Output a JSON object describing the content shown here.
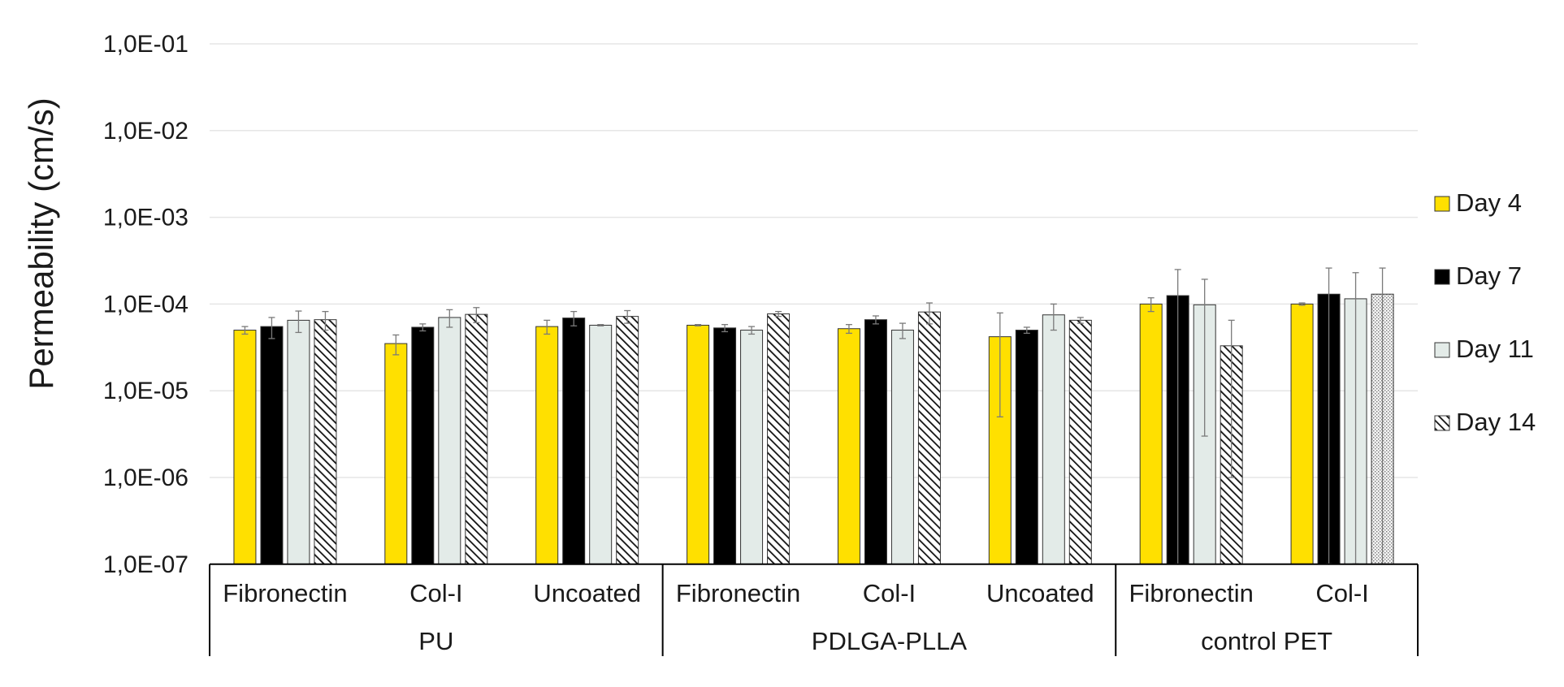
{
  "chart_data": {
    "type": "bar",
    "title": "",
    "xlabel": "",
    "ylabel": "Permeability (cm/s)",
    "yscale": "log",
    "ylim": [
      1e-07,
      0.1
    ],
    "yticks": [
      {
        "value": 0.1,
        "label": "1,0E-01"
      },
      {
        "value": 0.01,
        "label": "1,0E-02"
      },
      {
        "value": 0.001,
        "label": "1,0E-03"
      },
      {
        "value": 0.0001,
        "label": "1,0E-04"
      },
      {
        "value": 1e-05,
        "label": "1,0E-05"
      },
      {
        "value": 1e-06,
        "label": "1,0E-06"
      },
      {
        "value": 1e-07,
        "label": "1,0E-07"
      }
    ],
    "grid": true,
    "legend_position": "right",
    "groups": [
      {
        "label": "PU",
        "categories": [
          "Fibronectin",
          "Col-I",
          "Uncoated"
        ]
      },
      {
        "label": "PDLGA-PLLA",
        "categories": [
          "Fibronectin",
          "Col-I",
          "Uncoated"
        ]
      },
      {
        "label": "control PET",
        "categories": [
          "Fibronectin",
          "Col-I"
        ]
      }
    ],
    "categories": [
      "Fibronectin",
      "Col-I",
      "Uncoated",
      "Fibronectin",
      "Col-I",
      "Uncoated",
      "Fibronectin",
      "Col-I"
    ],
    "series": [
      {
        "name": "Day 4",
        "color": "#ffe000",
        "pattern": "solid",
        "values": [
          5e-05,
          3.5e-05,
          5.5e-05,
          5.7e-05,
          5.2e-05,
          4.2e-05,
          0.0001,
          0.0001
        ],
        "errors": [
          5e-06,
          9e-06,
          1e-05,
          1e-06,
          6e-06,
          3.7e-05,
          1.8e-05,
          3e-06
        ]
      },
      {
        "name": "Day 7",
        "color": "#000000",
        "pattern": "solid",
        "values": [
          5.5e-05,
          5.4e-05,
          6.9e-05,
          5.3e-05,
          6.6e-05,
          5e-05,
          0.000125,
          0.00013
        ],
        "errors": [
          1.5e-05,
          5e-06,
          1.3e-05,
          5e-06,
          7e-06,
          4e-06,
          0.000125,
          0.00013
        ]
      },
      {
        "name": "Day 11",
        "color": "#e3ebe8",
        "pattern": "solid",
        "values": [
          6.5e-05,
          7e-05,
          5.7e-05,
          5e-05,
          5e-05,
          7.5e-05,
          9.8e-05,
          0.000115
        ],
        "errors": [
          1.8e-05,
          1.6e-05,
          1e-06,
          5e-06,
          1e-05,
          2.5e-05,
          9.5e-05,
          0.000115
        ]
      },
      {
        "name": "Day 14",
        "color": "#ffffff",
        "pattern": "hatch",
        "values": [
          6.6e-05,
          7.6e-05,
          7.2e-05,
          7.7e-05,
          8.1e-05,
          6.5e-05,
          3.3e-05,
          0.00013
        ],
        "errors": [
          1.6e-05,
          1.5e-05,
          1.2e-05,
          5e-06,
          2.2e-05,
          5e-06,
          3.2e-05,
          0.00013
        ]
      }
    ]
  }
}
